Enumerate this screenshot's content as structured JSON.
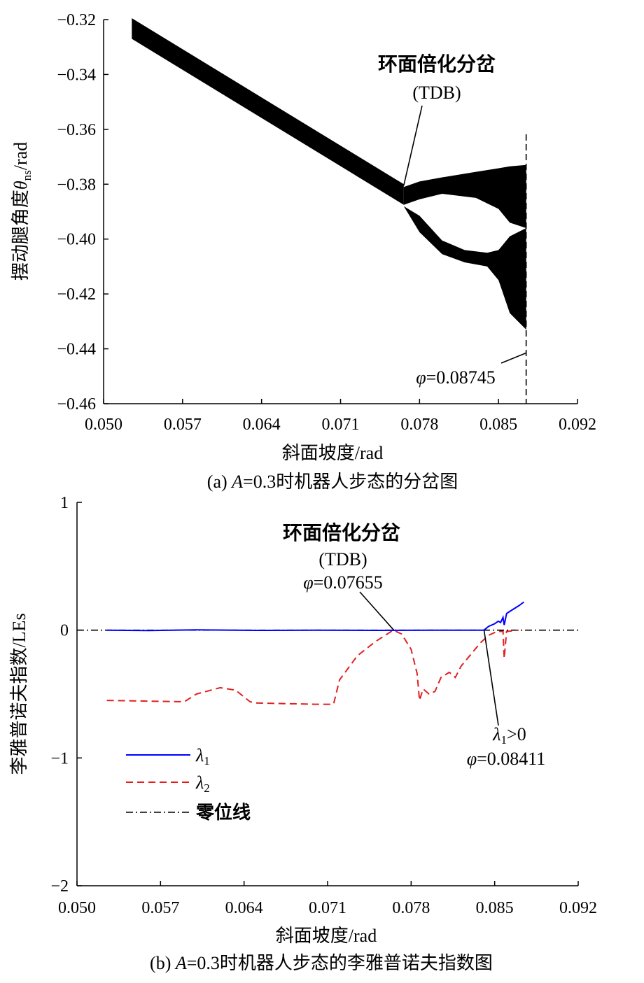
{
  "chart_data": [
    {
      "type": "scatter",
      "xlabel": "斜面坡度/rad",
      "ylabel": "摆动腿角度θns/rad",
      "ylabel_parts": {
        "prefix": "摆动腿角度",
        "symbol": "θ",
        "subscript": "ns",
        "suffix": "/rad"
      },
      "xlim": [
        0.05,
        0.092
      ],
      "ylim": [
        -0.46,
        -0.32
      ],
      "xticks": [
        "0.050",
        "0.057",
        "0.064",
        "0.071",
        "0.078",
        "0.085",
        "0.092"
      ],
      "yticks": [
        "−0.32",
        "−0.34",
        "−0.36",
        "−0.38",
        "−0.40",
        "−0.42",
        "−0.44",
        "−0.46"
      ],
      "grid": false,
      "caption": "(a) A=0.3时机器人步态的分岔图",
      "caption_parts": {
        "label": "(a) ",
        "var": "A",
        "rest": "=0.3时机器人步态的分岔图"
      },
      "series": [
        {
          "color": "#000000",
          "band": [
            {
              "x": 0.0525,
              "lower": -0.327,
              "upper": -0.3195
            },
            {
              "x": 0.0766,
              "lower": -0.3875,
              "upper": -0.38
            }
          ]
        },
        {
          "color": "#000000",
          "upper_branch": [
            {
              "x": 0.0766,
              "lower": -0.3875,
              "upper": -0.381
            },
            {
              "x": 0.078,
              "lower": -0.3855,
              "upper": -0.379
            },
            {
              "x": 0.08,
              "lower": -0.3835,
              "upper": -0.3775
            },
            {
              "x": 0.083,
              "lower": -0.385,
              "upper": -0.3755
            },
            {
              "x": 0.085,
              "lower": -0.389,
              "upper": -0.3742
            },
            {
              "x": 0.086,
              "lower": -0.394,
              "upper": -0.3735
            },
            {
              "x": 0.08745,
              "lower": -0.396,
              "upper": -0.373
            }
          ],
          "lower_branch": [
            {
              "x": 0.0766,
              "lower": -0.388,
              "upper": -0.388
            },
            {
              "x": 0.078,
              "lower": -0.3975,
              "upper": -0.3915
            },
            {
              "x": 0.08,
              "lower": -0.4055,
              "upper": -0.4005
            },
            {
              "x": 0.082,
              "lower": -0.4085,
              "upper": -0.404
            },
            {
              "x": 0.084,
              "lower": -0.41,
              "upper": -0.405
            },
            {
              "x": 0.085,
              "lower": -0.415,
              "upper": -0.404
            },
            {
              "x": 0.086,
              "lower": -0.427,
              "upper": -0.399
            },
            {
              "x": 0.08745,
              "lower": -0.433,
              "upper": -0.396
            }
          ]
        }
      ],
      "vline": {
        "x": 0.08745,
        "style": "dashed"
      },
      "annotations": [
        {
          "text": "环面倍化分岔",
          "sub": "(TDB)",
          "target_x": 0.0766,
          "target_y": -0.3805
        },
        {
          "prefix": "φ",
          "text": "=0.08745",
          "target_x": 0.08745,
          "target_y": -0.4415
        }
      ]
    },
    {
      "type": "line",
      "xlabel": "斜面坡度/rad",
      "ylabel": "李雅普诺夫指数/LEs",
      "xlim": [
        0.05,
        0.092
      ],
      "ylim": [
        -2,
        1
      ],
      "xticks": [
        "0.050",
        "0.057",
        "0.064",
        "0.071",
        "0.078",
        "0.085",
        "0.092"
      ],
      "yticks": [
        "1",
        "0",
        "−1",
        "−2"
      ],
      "grid": false,
      "legend": "lower-left",
      "caption": "(b) A=0.3时机器人步态的李雅普诺夫指数图",
      "caption_parts": {
        "label": "(b) ",
        "var": "A",
        "rest": "=0.3时机器人步态的李雅普诺夫指数图"
      },
      "series": [
        {
          "name": "λ1",
          "symbol": "λ",
          "subscript": "1",
          "color": "#0000ff",
          "style": "solid",
          "points": [
            [
              0.0525,
              0.0
            ],
            [
              0.056,
              -0.003
            ],
            [
              0.06,
              0.002
            ],
            [
              0.065,
              -0.002
            ],
            [
              0.07,
              0.0
            ],
            [
              0.075,
              -0.002
            ],
            [
              0.08,
              0.0
            ],
            [
              0.0835,
              0.0
            ],
            [
              0.0841,
              0.0
            ],
            [
              0.0845,
              0.03
            ],
            [
              0.085,
              0.05
            ],
            [
              0.0853,
              0.07
            ],
            [
              0.0855,
              0.06
            ],
            [
              0.0857,
              0.1
            ],
            [
              0.0858,
              0.04
            ],
            [
              0.086,
              0.13
            ],
            [
              0.0865,
              0.16
            ],
            [
              0.087,
              0.19
            ],
            [
              0.08745,
              0.22
            ]
          ]
        },
        {
          "name": "λ2",
          "symbol": "λ",
          "subscript": "2",
          "color": "#e02020",
          "style": "dashed",
          "points": [
            [
              0.0525,
              -0.55
            ],
            [
              0.059,
              -0.56
            ],
            [
              0.06,
              -0.5
            ],
            [
              0.062,
              -0.45
            ],
            [
              0.0633,
              -0.47
            ],
            [
              0.0645,
              -0.56
            ],
            [
              0.065,
              -0.57
            ],
            [
              0.07,
              -0.58
            ],
            [
              0.0715,
              -0.58
            ],
            [
              0.072,
              -0.39
            ],
            [
              0.0735,
              -0.2
            ],
            [
              0.075,
              -0.09
            ],
            [
              0.0765,
              0.0
            ],
            [
              0.0772,
              -0.03
            ],
            [
              0.078,
              -0.15
            ],
            [
              0.0785,
              -0.34
            ],
            [
              0.0787,
              -0.55
            ],
            [
              0.079,
              -0.46
            ],
            [
              0.0795,
              -0.5
            ],
            [
              0.08,
              -0.48
            ],
            [
              0.0805,
              -0.37
            ],
            [
              0.0812,
              -0.33
            ],
            [
              0.0817,
              -0.37
            ],
            [
              0.0822,
              -0.28
            ],
            [
              0.083,
              -0.19
            ],
            [
              0.0838,
              -0.1
            ],
            [
              0.0845,
              -0.04
            ],
            [
              0.0852,
              -0.01
            ],
            [
              0.0857,
              -0.01
            ],
            [
              0.0858,
              -0.22
            ],
            [
              0.086,
              -0.01
            ],
            [
              0.087,
              0.0
            ]
          ]
        },
        {
          "name": "零位线",
          "color": "#000000",
          "style": "dashdot",
          "points": [
            [
              0.05,
              0
            ],
            [
              0.092,
              0
            ]
          ]
        }
      ],
      "annotations": [
        {
          "text": "环面倍化分岔",
          "sub": "(TDB)",
          "prefix": "φ",
          "value": "=0.07655",
          "target_x": 0.07655,
          "target_y": 0.0
        },
        {
          "prefix": "λ",
          "subscript": "1",
          "text": ">0",
          "prefix2": "φ",
          "value": "=0.08411",
          "target_x": 0.08411,
          "target_y": 0.0
        }
      ]
    }
  ]
}
